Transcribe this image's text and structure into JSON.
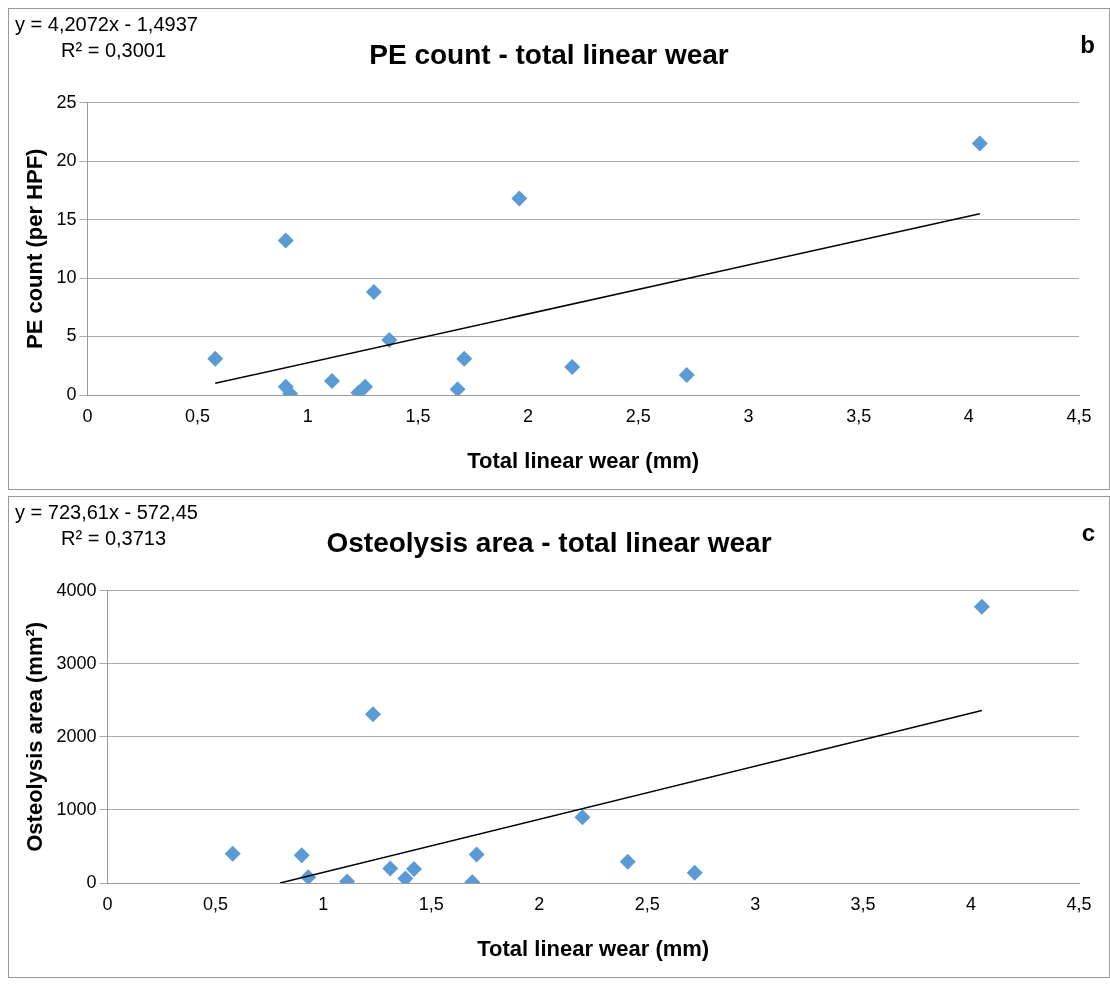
{
  "chart_data": [
    {
      "type": "scatter",
      "title": "PE count - total linear wear",
      "xlabel": "Total linear wear (mm)",
      "ylabel": "PE count (per HPF)",
      "annotations": [
        "y = 4,2072x - 1,4937",
        "R² = 0,3001",
        "b"
      ],
      "marker": "diamond",
      "grid": "y",
      "legend": false,
      "xlim": [
        0,
        4.5
      ],
      "xticks": [
        0,
        {
          "value": 0.5,
          "label": "0,5"
        },
        1,
        {
          "value": 1.5,
          "label": "1,5"
        },
        2,
        {
          "value": 2.5,
          "label": "2,5"
        },
        3,
        {
          "value": 3.5,
          "label": "3,5"
        },
        4,
        {
          "value": 4.5,
          "label": "4,5"
        }
      ],
      "ylim": [
        0,
        25
      ],
      "yticks": [
        0,
        5,
        10,
        15,
        20,
        25
      ],
      "series": [
        {
          "type": "scatter",
          "color": "#5b9bd5",
          "x": [
            0.58,
            0.9,
            0.9,
            0.92,
            1.11,
            1.23,
            1.26,
            1.3,
            1.37,
            1.68,
            1.71,
            1.96,
            2.2,
            2.72,
            4.05
          ],
          "values": [
            3.1,
            13.2,
            0.7,
            0.1,
            1.2,
            0.2,
            0.7,
            8.8,
            4.7,
            0.5,
            3.1,
            16.8,
            2.4,
            1.7,
            21.5
          ]
        },
        {
          "type": "line",
          "color": "#000000",
          "marker": "none",
          "x": [
            0.58,
            4.05
          ],
          "values": [
            1,
            15.5
          ]
        }
      ]
    },
    {
      "type": "scatter",
      "title": "Osteolysis area - total linear wear",
      "xlabel": "Total linear wear (mm)",
      "ylabel": "Osteolysis area (mm²)",
      "annotations": [
        "y = 723,61x - 572,45",
        "R² = 0,3713",
        "c"
      ],
      "marker": "diamond",
      "grid": "y",
      "legend": false,
      "xlim": [
        0,
        4.5
      ],
      "xticks": [
        0,
        {
          "value": 0.5,
          "label": "0,5"
        },
        1,
        {
          "value": 1.5,
          "label": "1,5"
        },
        2,
        {
          "value": 2.5,
          "label": "2,5"
        },
        3,
        {
          "value": 3.5,
          "label": "3,5"
        },
        4,
        {
          "value": 4.5,
          "label": "4,5"
        }
      ],
      "ylim": [
        0,
        4000
      ],
      "yticks": [
        0,
        1000,
        2000,
        3000,
        4000
      ],
      "series": [
        {
          "type": "scatter",
          "color": "#5b9bd5",
          "x": [
            0.58,
            0.9,
            0.93,
            1.11,
            1.23,
            1.31,
            1.38,
            1.42,
            1.69,
            1.71,
            2.2,
            2.41,
            2.72,
            4.05
          ],
          "values": [
            400,
            380,
            80,
            20,
            2310,
            200,
            60,
            190,
            10,
            390,
            900,
            290,
            140,
            3780
          ]
        },
        {
          "type": "line",
          "color": "#000000",
          "marker": "none",
          "x": [
            0.8,
            4.05
          ],
          "values": [
            0,
            2360
          ]
        }
      ]
    }
  ]
}
